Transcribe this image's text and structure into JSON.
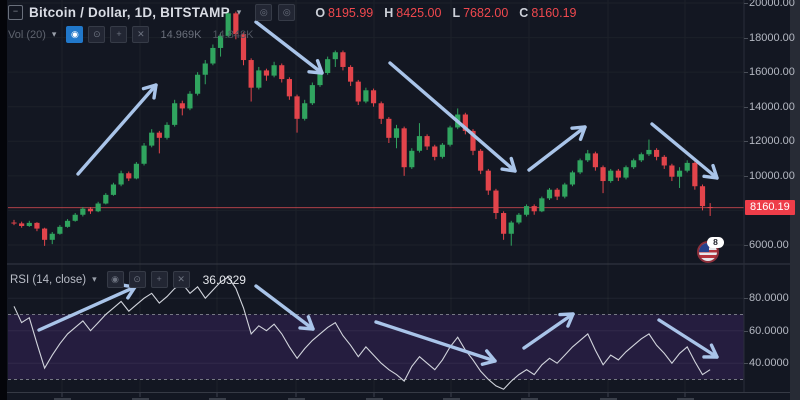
{
  "header": {
    "symbol": "Bitcoin / Dollar, 1D, BITSTAMP",
    "caret": "▾",
    "panel_toggle_glyph": "−",
    "quick_icon_1": "◎",
    "quick_icon_2": "◎",
    "ohlc": {
      "o_label": "O",
      "o_value": "8195.99",
      "h_label": "H",
      "h_value": "8425.00",
      "l_label": "L",
      "l_value": "7682.00",
      "c_label": "C",
      "c_value": "8160.19"
    }
  },
  "volume_legend": {
    "label": "Vol (20)",
    "caret": "▾",
    "eye_icon": "◉",
    "gear_icon": "⊙",
    "add_icon": "+",
    "close_icon": "✕",
    "value1": "14.969K",
    "value2": "14.848K"
  },
  "rsi_legend": {
    "label": "RSI (14, close)",
    "caret": "▾",
    "eye_icon": "◉",
    "gear_icon": "⊙",
    "add_icon": "+",
    "close_icon": "✕",
    "value": "36.0329"
  },
  "price_axis": {
    "badge_text": "8160.19",
    "badge_color": "#ee3d49",
    "labels": [
      {
        "text": "20000.00",
        "price": 20000
      },
      {
        "text": "18000.00",
        "price": 18000
      },
      {
        "text": "16000.00",
        "price": 16000
      },
      {
        "text": "14000.00",
        "price": 14000
      },
      {
        "text": "12000.00",
        "price": 12000
      },
      {
        "text": "10000.00",
        "price": 10000
      },
      {
        "text": "6000.00",
        "price": 6000
      }
    ]
  },
  "rsi_axis": {
    "labels": [
      {
        "text": "80.0000",
        "value": 80
      },
      {
        "text": "60.0000",
        "value": 60
      },
      {
        "text": "40.0000",
        "value": 40
      }
    ]
  },
  "notification_badge": "8",
  "colors": {
    "background": "#131722",
    "grid": "#1c2129",
    "candle_up": "#30a45f",
    "candle_down": "#e2444b",
    "price_line": "#d94a52",
    "rsi_line": "#d1d4dc",
    "rsi_band_fill": "#251d3f",
    "rsi_band_border": "#9598a1",
    "arrow": "#a9c4e9",
    "divider": "#363a45",
    "axis_text": "#b4b8c2"
  },
  "chart_data": [
    {
      "type": "candlestick",
      "name": "BTCUSD daily candles",
      "ylim": [
        5500,
        20400
      ],
      "grid": true,
      "legend_position": "top-left",
      "price_line_value": 8160.19,
      "ohlc": [
        [
          7300,
          7450,
          7150,
          7250
        ],
        [
          7250,
          7350,
          7000,
          7100
        ],
        [
          7100,
          7400,
          7050,
          7280
        ],
        [
          7280,
          7320,
          6800,
          6950
        ],
        [
          6950,
          7000,
          5950,
          6300
        ],
        [
          6300,
          6750,
          6050,
          6650
        ],
        [
          6650,
          7150,
          6600,
          7050
        ],
        [
          7050,
          7500,
          7000,
          7400
        ],
        [
          7400,
          7850,
          7350,
          7750
        ],
        [
          7750,
          8200,
          7650,
          8100
        ],
        [
          8100,
          8200,
          7800,
          7950
        ],
        [
          7950,
          8500,
          7900,
          8400
        ],
        [
          8400,
          9000,
          8350,
          8900
        ],
        [
          8900,
          9600,
          8850,
          9500
        ],
        [
          9500,
          10300,
          9400,
          10150
        ],
        [
          10150,
          10250,
          9700,
          9850
        ],
        [
          9850,
          10800,
          9800,
          10700
        ],
        [
          10700,
          11900,
          10600,
          11750
        ],
        [
          11750,
          12700,
          11650,
          12500
        ],
        [
          12500,
          12600,
          11300,
          12200
        ],
        [
          12200,
          13100,
          12100,
          12950
        ],
        [
          12950,
          14400,
          12850,
          14200
        ],
        [
          14200,
          14350,
          13500,
          13900
        ],
        [
          13900,
          14900,
          13800,
          14750
        ],
        [
          14750,
          16000,
          14650,
          15850
        ],
        [
          15850,
          16700,
          15300,
          16500
        ],
        [
          16500,
          17600,
          16400,
          17400
        ],
        [
          17400,
          18300,
          16900,
          18100
        ],
        [
          18100,
          19666,
          18000,
          19400
        ],
        [
          19400,
          19500,
          17900,
          18200
        ],
        [
          18200,
          18300,
          16400,
          16700
        ],
        [
          16700,
          16800,
          14300,
          15100
        ],
        [
          15100,
          16300,
          15000,
          16100
        ],
        [
          16100,
          16200,
          15500,
          15800
        ],
        [
          15800,
          16600,
          15700,
          16400
        ],
        [
          16400,
          16500,
          15400,
          15600
        ],
        [
          15600,
          15700,
          14400,
          14600
        ],
        [
          14600,
          14700,
          12500,
          13300
        ],
        [
          13300,
          14400,
          13200,
          14200
        ],
        [
          14200,
          15400,
          14100,
          15250
        ],
        [
          15250,
          16100,
          15150,
          15950
        ],
        [
          15950,
          16900,
          15850,
          16750
        ],
        [
          16750,
          17250,
          16300,
          17150
        ],
        [
          17150,
          17250,
          16100,
          16300
        ],
        [
          16300,
          16400,
          15200,
          15450
        ],
        [
          15450,
          15550,
          14100,
          14300
        ],
        [
          14300,
          15100,
          14200,
          14950
        ],
        [
          14950,
          15050,
          14000,
          14200
        ],
        [
          14200,
          14300,
          13000,
          13300
        ],
        [
          13300,
          13400,
          11900,
          12200
        ],
        [
          12200,
          12950,
          11600,
          12750
        ],
        [
          12750,
          12850,
          10000,
          10500
        ],
        [
          10500,
          11600,
          10400,
          11450
        ],
        [
          11450,
          13050,
          11350,
          12300
        ],
        [
          12300,
          12400,
          11500,
          11700
        ],
        [
          11700,
          11800,
          10900,
          11100
        ],
        [
          11100,
          11900,
          11000,
          11800
        ],
        [
          11800,
          12900,
          11700,
          12800
        ],
        [
          12800,
          13900,
          12700,
          13550
        ],
        [
          13550,
          13650,
          12400,
          12600
        ],
        [
          12600,
          12700,
          11200,
          11450
        ],
        [
          11450,
          11550,
          10100,
          10300
        ],
        [
          10300,
          10400,
          8900,
          9150
        ],
        [
          9150,
          9250,
          7500,
          7850
        ],
        [
          7850,
          7950,
          6300,
          6650
        ],
        [
          6650,
          7400,
          5960,
          7300
        ],
        [
          7300,
          7850,
          7200,
          7750
        ],
        [
          7750,
          8350,
          7650,
          8250
        ],
        [
          8250,
          8350,
          7750,
          7950
        ],
        [
          7950,
          8800,
          7900,
          8700
        ],
        [
          8700,
          9300,
          8600,
          9200
        ],
        [
          9200,
          9300,
          8600,
          8800
        ],
        [
          8800,
          9600,
          8700,
          9500
        ],
        [
          9500,
          10300,
          9400,
          10200
        ],
        [
          10200,
          11000,
          10100,
          10900
        ],
        [
          10900,
          11500,
          10800,
          11300
        ],
        [
          11300,
          11400,
          10300,
          10500
        ],
        [
          10500,
          10600,
          9000,
          9700
        ],
        [
          9700,
          10400,
          9600,
          10300
        ],
        [
          10300,
          10400,
          9700,
          9900
        ],
        [
          9900,
          10600,
          9800,
          10500
        ],
        [
          10500,
          11000,
          10400,
          10900
        ],
        [
          10900,
          11350,
          10800,
          11250
        ],
        [
          11250,
          12100,
          11150,
          11500
        ],
        [
          11500,
          11600,
          10900,
          11100
        ],
        [
          11100,
          11200,
          10400,
          10600
        ],
        [
          10600,
          10700,
          9700,
          9950
        ],
        [
          9950,
          10500,
          9300,
          10300
        ],
        [
          10300,
          10900,
          10200,
          10750
        ],
        [
          10750,
          10850,
          9200,
          9400
        ],
        [
          9400,
          9500,
          8000,
          8250
        ],
        [
          8195.99,
          8425,
          7682,
          8160.19
        ]
      ]
    },
    {
      "type": "line",
      "name": "RSI (14, close)",
      "ylim": [
        20,
        100
      ],
      "upper_band": 70,
      "lower_band": 30,
      "last_value": 36.0329,
      "values": [
        75,
        65,
        68,
        52,
        37,
        45,
        52,
        58,
        62,
        66,
        60,
        65,
        70,
        74,
        78,
        72,
        76,
        80,
        83,
        77,
        81,
        86,
        89,
        83,
        87,
        80,
        85,
        90,
        93,
        86,
        74,
        58,
        63,
        60,
        64,
        58,
        50,
        43,
        49,
        54,
        58,
        62,
        65,
        57,
        51,
        44,
        50,
        45,
        40,
        36,
        33,
        29,
        38,
        44,
        40,
        36,
        42,
        50,
        56,
        48,
        42,
        35,
        30,
        26,
        24,
        29,
        33,
        36,
        33,
        39,
        43,
        40,
        45,
        50,
        54,
        58,
        48,
        39,
        45,
        42,
        47,
        51,
        55,
        58,
        51,
        46,
        40,
        46,
        50,
        41,
        33,
        36.03
      ]
    }
  ],
  "annotations": {
    "price_arrows": [
      {
        "from": [
          78,
          174
        ],
        "to": [
          156,
          85
        ]
      },
      {
        "from": [
          256,
          22
        ],
        "to": [
          322,
          73
        ]
      },
      {
        "from": [
          390,
          63
        ],
        "to": [
          515,
          171
        ]
      },
      {
        "from": [
          529,
          170
        ],
        "to": [
          585,
          127
        ]
      },
      {
        "from": [
          652,
          124
        ],
        "to": [
          717,
          178
        ]
      }
    ],
    "rsi_arrows": [
      {
        "from": [
          39,
          330
        ],
        "to": [
          135,
          287
        ]
      },
      {
        "from": [
          256,
          286
        ],
        "to": [
          313,
          329
        ]
      },
      {
        "from": [
          376,
          322
        ],
        "to": [
          495,
          361
        ]
      },
      {
        "from": [
          524,
          348
        ],
        "to": [
          573,
          314
        ]
      },
      {
        "from": [
          659,
          320
        ],
        "to": [
          717,
          357
        ]
      }
    ]
  }
}
